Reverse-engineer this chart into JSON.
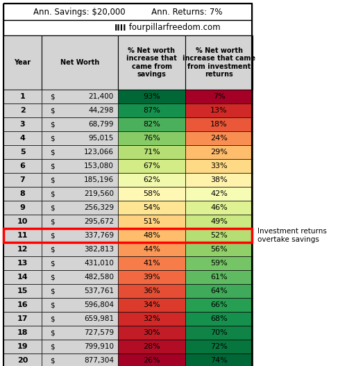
{
  "title_line1": "Ann. Savings: $20,000          Ann. Returns: 7%",
  "title_line2_bold": "IIII",
  "title_line2_normal": " fourpillarfreedom.com",
  "col_headers": [
    "Year",
    "Net Worth",
    "% Net worth\nincrease that\ncame from\nsavings",
    "% Net worth\nincrease that came\nfrom investment\nreturns"
  ],
  "years": [
    1,
    2,
    3,
    4,
    5,
    6,
    7,
    8,
    9,
    10,
    11,
    12,
    13,
    14,
    15,
    16,
    17,
    18,
    19,
    20
  ],
  "net_worth_dollar": [
    "$",
    "$",
    "$",
    "$",
    "$",
    "$",
    "$",
    "$",
    "$",
    "$",
    "$",
    "$",
    "$",
    "$",
    "$",
    "$",
    "$",
    "$",
    "$",
    "$"
  ],
  "net_worth_num": [
    "21,400",
    "44,298",
    "68,799",
    "95,015",
    "123,066",
    "153,080",
    "185,196",
    "219,560",
    "256,329",
    "295,672",
    "337,769",
    "382,813",
    "431,010",
    "482,580",
    "537,761",
    "596,804",
    "659,981",
    "727,579",
    "799,910",
    "877,304"
  ],
  "savings_pct": [
    93,
    87,
    82,
    76,
    71,
    67,
    62,
    58,
    54,
    51,
    48,
    44,
    41,
    39,
    36,
    34,
    32,
    30,
    28,
    26
  ],
  "returns_pct": [
    7,
    13,
    18,
    24,
    29,
    33,
    38,
    42,
    46,
    49,
    52,
    56,
    59,
    61,
    64,
    66,
    68,
    70,
    72,
    74
  ],
  "highlight_row": 10,
  "annotation": "Investment returns\novertake savings",
  "gray_bg": "#d4d4d4",
  "white_bg": "#ffffff",
  "highlight_color": "#ff0000"
}
